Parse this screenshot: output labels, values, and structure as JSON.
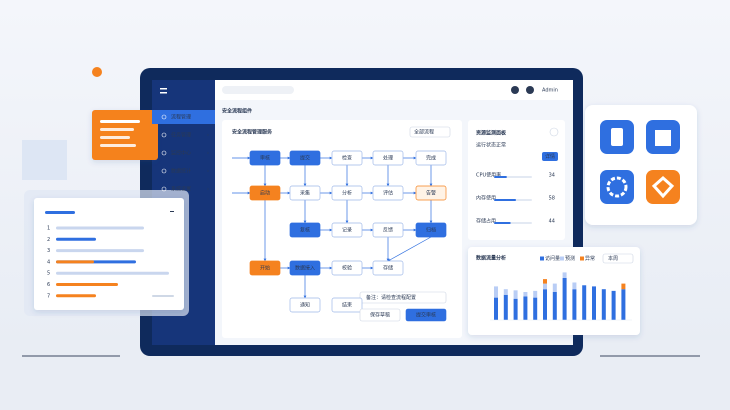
{
  "header": {
    "title": "安全流程组件",
    "user": "Admin"
  },
  "sidebar": {
    "items": [
      "流程管理",
      "任务管理",
      "监控中心",
      "数据统计",
      "系统设置"
    ]
  },
  "flow": {
    "title": "安全流程管理服务",
    "filter": "全部流程",
    "nodes": [
      "审核",
      "提交",
      "检查",
      "处理",
      "完成",
      "启动",
      "采集",
      "分析",
      "评估",
      "告警",
      "复核",
      "记录",
      "反馈",
      "归档",
      "开始",
      "数据接入",
      "校验",
      "存储",
      "通知",
      "结束"
    ],
    "note": "备注：请检查流程配置",
    "buttons": [
      "保存草稿",
      "提交审核"
    ]
  },
  "resource": {
    "title": "资源监测面板",
    "subtitle": "运行状态正常",
    "button": "详情",
    "metrics": [
      {
        "label": "CPU使用率",
        "value": 34
      },
      {
        "label": "内存使用",
        "value": 58
      },
      {
        "label": "存储占用",
        "value": 44
      }
    ]
  },
  "traffic": {
    "title": "数据流量分析",
    "select": "本周",
    "series": [
      {
        "name": "访问量",
        "color": "#2f6fe0",
        "values": [
          40,
          45,
          38,
          42,
          40,
          55,
          50,
          75,
          55,
          62,
          60,
          55,
          52,
          55
        ]
      },
      {
        "name": "预测",
        "color": "#b9cdf5",
        "values": [
          20,
          10,
          15,
          8,
          12,
          10,
          15,
          10,
          12,
          0,
          0,
          0,
          0,
          0
        ]
      },
      {
        "name": "异常",
        "color": "#f5821f",
        "values": [
          0,
          0,
          0,
          0,
          0,
          8,
          0,
          0,
          0,
          0,
          0,
          0,
          0,
          10
        ]
      }
    ],
    "ylim": [
      0,
      100
    ]
  },
  "list": {
    "rows": [
      "1",
      "2",
      "3",
      "4",
      "5",
      "6",
      "7"
    ]
  }
}
